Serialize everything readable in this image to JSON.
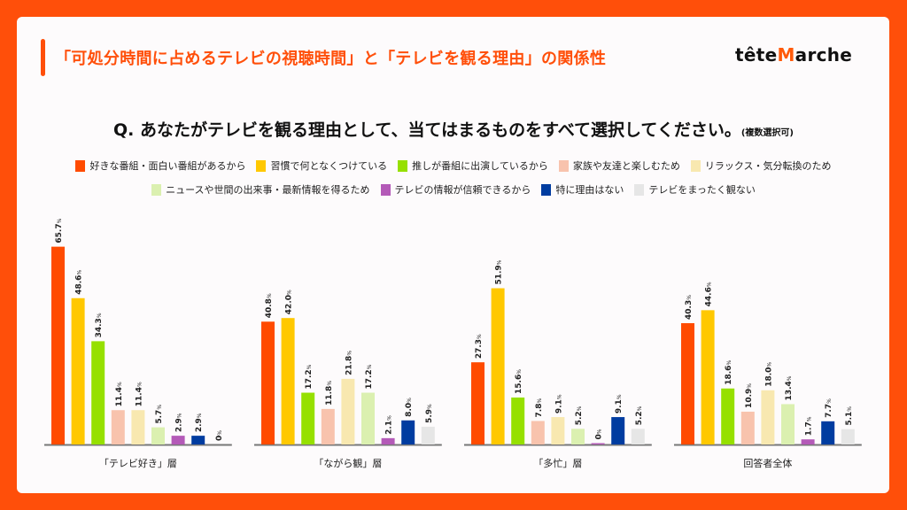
{
  "header": {
    "title": "「可処分時間に占めるテレビの視聴時間」と「テレビを観る理由」の関係性",
    "logo_text": "têteMarche"
  },
  "question": {
    "text": "Q. あなたがテレビを観る理由として、当てはまるものをすべて選択してください。",
    "note": "(複数選択可)"
  },
  "chart_data": {
    "type": "bar",
    "title": "Q. あなたがテレビを観る理由として、当てはまるものをすべて選択してください。(複数選択可)",
    "unit": "%",
    "legend_placement": "top",
    "grid": false,
    "ylim": [
      0,
      70
    ],
    "categories": [
      "「テレビ好き」層",
      "「ながら観」層",
      "「多忙」層",
      "回答者全体"
    ],
    "series": [
      {
        "name": "好きな番組・面白い番組があるから",
        "color": "#ff4b00",
        "values": [
          "65.7",
          "40.8",
          "27.3",
          "40.3"
        ]
      },
      {
        "name": "習慣で何となくつけている",
        "color": "#ffc800",
        "values": [
          "48.6",
          "42.0",
          "51.9",
          "44.6"
        ]
      },
      {
        "name": "推しが番組に出演しているから",
        "color": "#96e000",
        "values": [
          "34.3",
          "17.2",
          "15.6",
          "18.6"
        ]
      },
      {
        "name": "家族や友達と楽しむため",
        "color": "#f8c3ad",
        "values": [
          "11.4",
          "11.8",
          "7.8",
          "10.9"
        ]
      },
      {
        "name": "リラックス・気分転換のため",
        "color": "#f8e8b0",
        "values": [
          "11.4",
          "21.8",
          "9.1",
          "18.0"
        ]
      },
      {
        "name": "ニュースや世間の出来事・最新情報を得るため",
        "color": "#dbf0b0",
        "values": [
          "5.7",
          "17.2",
          "5.2",
          "13.4"
        ]
      },
      {
        "name": "テレビの情報が信頼できるから",
        "color": "#b45ab8",
        "values": [
          "2.9",
          "2.1",
          "0",
          "1.7"
        ]
      },
      {
        "name": "特に理由はない",
        "color": "#003ca0",
        "values": [
          "2.9",
          "8.0",
          "9.1",
          "7.7"
        ]
      },
      {
        "name": "テレビをまったく観ない",
        "color": "#e6e6e6",
        "values": [
          "0",
          "5.9",
          "5.2",
          "5.1"
        ]
      }
    ]
  }
}
